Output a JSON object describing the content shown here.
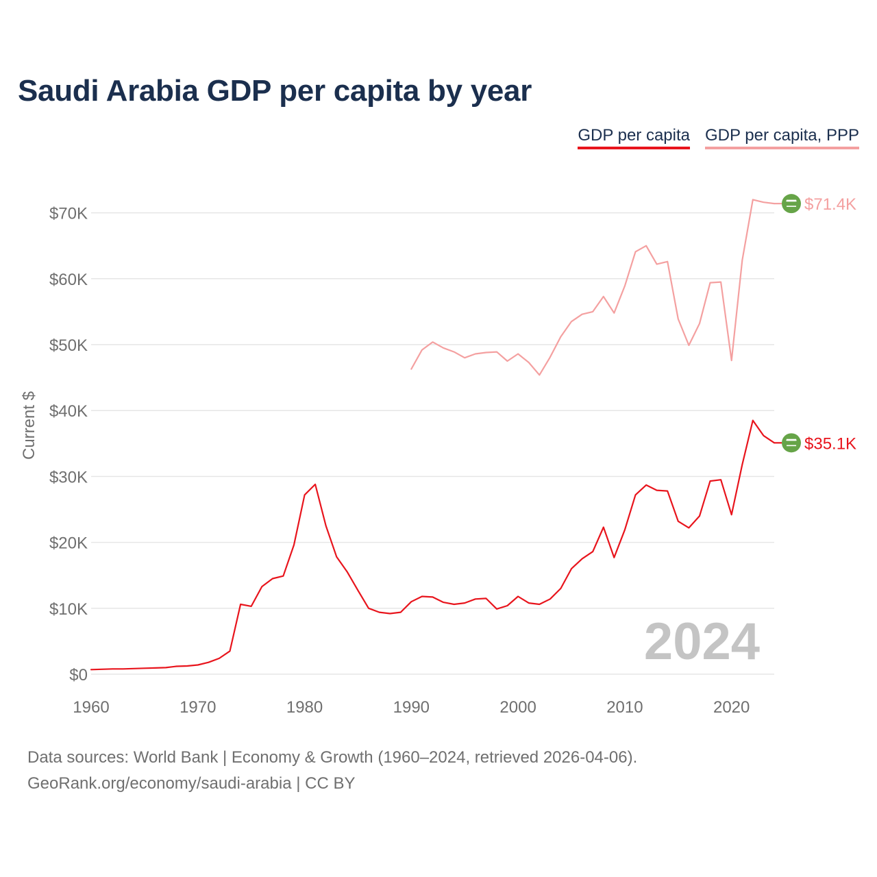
{
  "title": "Saudi Arabia GDP per capita by year",
  "legend": [
    {
      "label": "GDP per capita",
      "color": "#e8141c"
    },
    {
      "label": "GDP per capita, PPP",
      "color": "#f4a0a0"
    }
  ],
  "year_label": "2024",
  "end_labels": {
    "gdp": "$35.1K",
    "ppp": "$71.4K"
  },
  "flag_icon": "saudi-arabia-flag-icon",
  "footer": {
    "line1": "Data sources: World Bank | Economy & Growth (1960–2024, retrieved 2026-04-06).",
    "line2": "GeoRank.org/economy/saudi-arabia | CC BY"
  },
  "chart_data": {
    "type": "line",
    "title": "Saudi Arabia GDP per capita by year",
    "xlabel": "",
    "ylabel": "Current $",
    "xlim": [
      1960,
      2024
    ],
    "ylim": [
      0,
      72000
    ],
    "x_ticks": [
      {
        "value": 1960,
        "label": "1960"
      },
      {
        "value": 1970,
        "label": "1970"
      },
      {
        "value": 1980,
        "label": "1980"
      },
      {
        "value": 1990,
        "label": "1990"
      },
      {
        "value": 2000,
        "label": "2000"
      },
      {
        "value": 2010,
        "label": "2010"
      },
      {
        "value": 2020,
        "label": "2020"
      }
    ],
    "y_ticks": [
      {
        "value": 0,
        "label": "$0"
      },
      {
        "value": 10000,
        "label": "$10K"
      },
      {
        "value": 20000,
        "label": "$20K"
      },
      {
        "value": 30000,
        "label": "$30K"
      },
      {
        "value": 40000,
        "label": "$40K"
      },
      {
        "value": 50000,
        "label": "$50K"
      },
      {
        "value": 60000,
        "label": "$60K"
      },
      {
        "value": 70000,
        "label": "$70K"
      }
    ],
    "grid": true,
    "series": [
      {
        "name": "GDP per capita",
        "color": "#e8141c",
        "x": [
          1960,
          1961,
          1962,
          1963,
          1964,
          1965,
          1966,
          1967,
          1968,
          1969,
          1970,
          1971,
          1972,
          1973,
          1974,
          1975,
          1976,
          1977,
          1978,
          1979,
          1980,
          1981,
          1982,
          1983,
          1984,
          1985,
          1986,
          1987,
          1988,
          1989,
          1990,
          1991,
          1992,
          1993,
          1994,
          1995,
          1996,
          1997,
          1998,
          1999,
          2000,
          2001,
          2002,
          2003,
          2004,
          2005,
          2006,
          2007,
          2008,
          2009,
          2010,
          2011,
          2012,
          2013,
          2014,
          2015,
          2016,
          2017,
          2018,
          2019,
          2020,
          2021,
          2022,
          2023,
          2024
        ],
        "values": [
          700,
          750,
          800,
          800,
          850,
          900,
          950,
          1000,
          1200,
          1250,
          1400,
          1800,
          2400,
          3500,
          10600,
          10300,
          13300,
          14500,
          14900,
          19600,
          27200,
          28800,
          22500,
          17800,
          15500,
          12700,
          10000,
          9400,
          9200,
          9400,
          11000,
          11800,
          11700,
          10900,
          10600,
          10800,
          11400,
          11500,
          9900,
          10400,
          11800,
          10800,
          10600,
          11400,
          13000,
          16000,
          17500,
          18600,
          22300,
          17700,
          21900,
          27200,
          28700,
          27900,
          27800,
          23200,
          22200,
          24000,
          29300,
          29500,
          24200,
          31800,
          38500,
          36200,
          35100
        ]
      },
      {
        "name": "GDP per capita, PPP",
        "color": "#f4a0a0",
        "x": [
          1990,
          1991,
          1992,
          1993,
          1994,
          1995,
          1996,
          1997,
          1998,
          1999,
          2000,
          2001,
          2002,
          2003,
          2004,
          2005,
          2006,
          2007,
          2008,
          2009,
          2010,
          2011,
          2012,
          2013,
          2014,
          2015,
          2016,
          2017,
          2018,
          2019,
          2020,
          2021,
          2022,
          2023,
          2024
        ],
        "values": [
          46300,
          49200,
          50400,
          49500,
          48900,
          48000,
          48600,
          48800,
          48900,
          47500,
          48600,
          47300,
          45400,
          48100,
          51200,
          53500,
          54600,
          55000,
          57300,
          54800,
          58900,
          64100,
          65000,
          62200,
          62600,
          53900,
          49900,
          53200,
          59400,
          59500,
          47600,
          62800,
          72000,
          71600,
          71400
        ]
      }
    ]
  }
}
